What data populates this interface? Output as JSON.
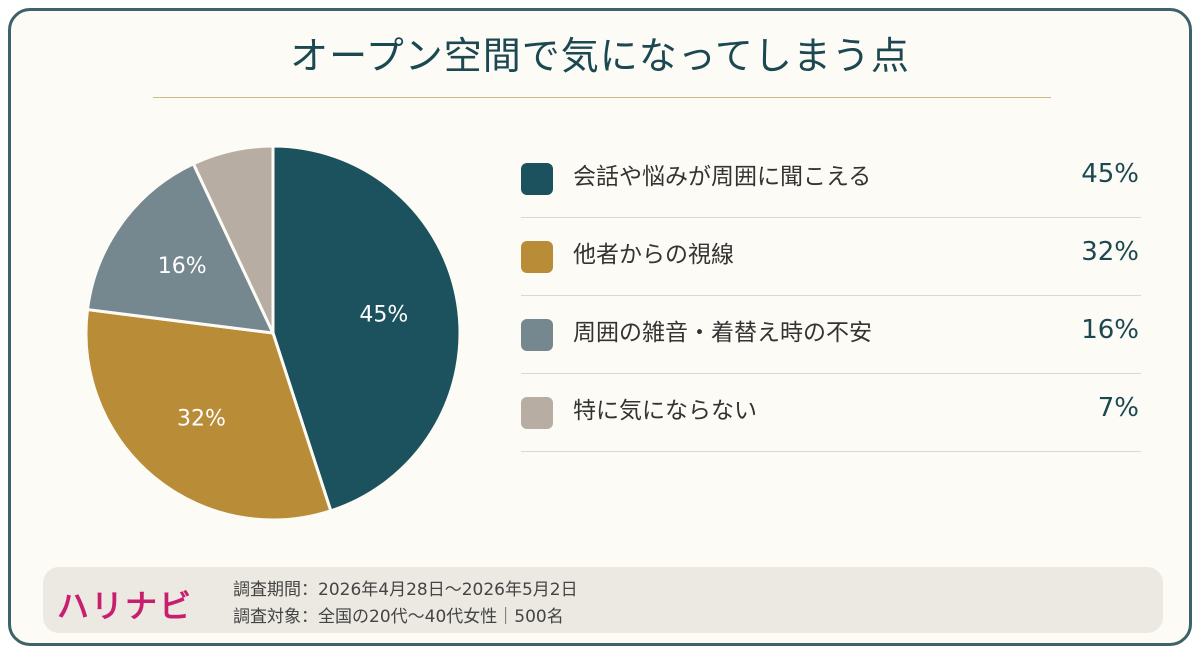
{
  "title": "オープン空間で気になってしまう点",
  "colors": {
    "frame": "#3d6268",
    "title": "#1c4852",
    "background": "#fcfbf5",
    "brand": "#c81e6e"
  },
  "chart_data": {
    "type": "pie",
    "legend_position": "right",
    "categories": [
      "会話や悩みが周囲に聞こえる",
      "他者からの視線",
      "周囲の雑音・着替え時の不安",
      "特に気にならない"
    ],
    "values": [
      45,
      32,
      16,
      7
    ],
    "value_labels": [
      "45%",
      "32%",
      "16%",
      "7%"
    ],
    "slice_labels": [
      "45%",
      "32%",
      "16%",
      ""
    ],
    "colors": [
      "#1b525d",
      "#b98c38",
      "#75878f",
      "#b7ada2"
    ]
  },
  "footer": {
    "brand": "ハリナビ",
    "period": "調査期間：2026年4月28日〜2026年5月2日",
    "target": "調査対象：全国の20代〜40代女性｜500名"
  }
}
